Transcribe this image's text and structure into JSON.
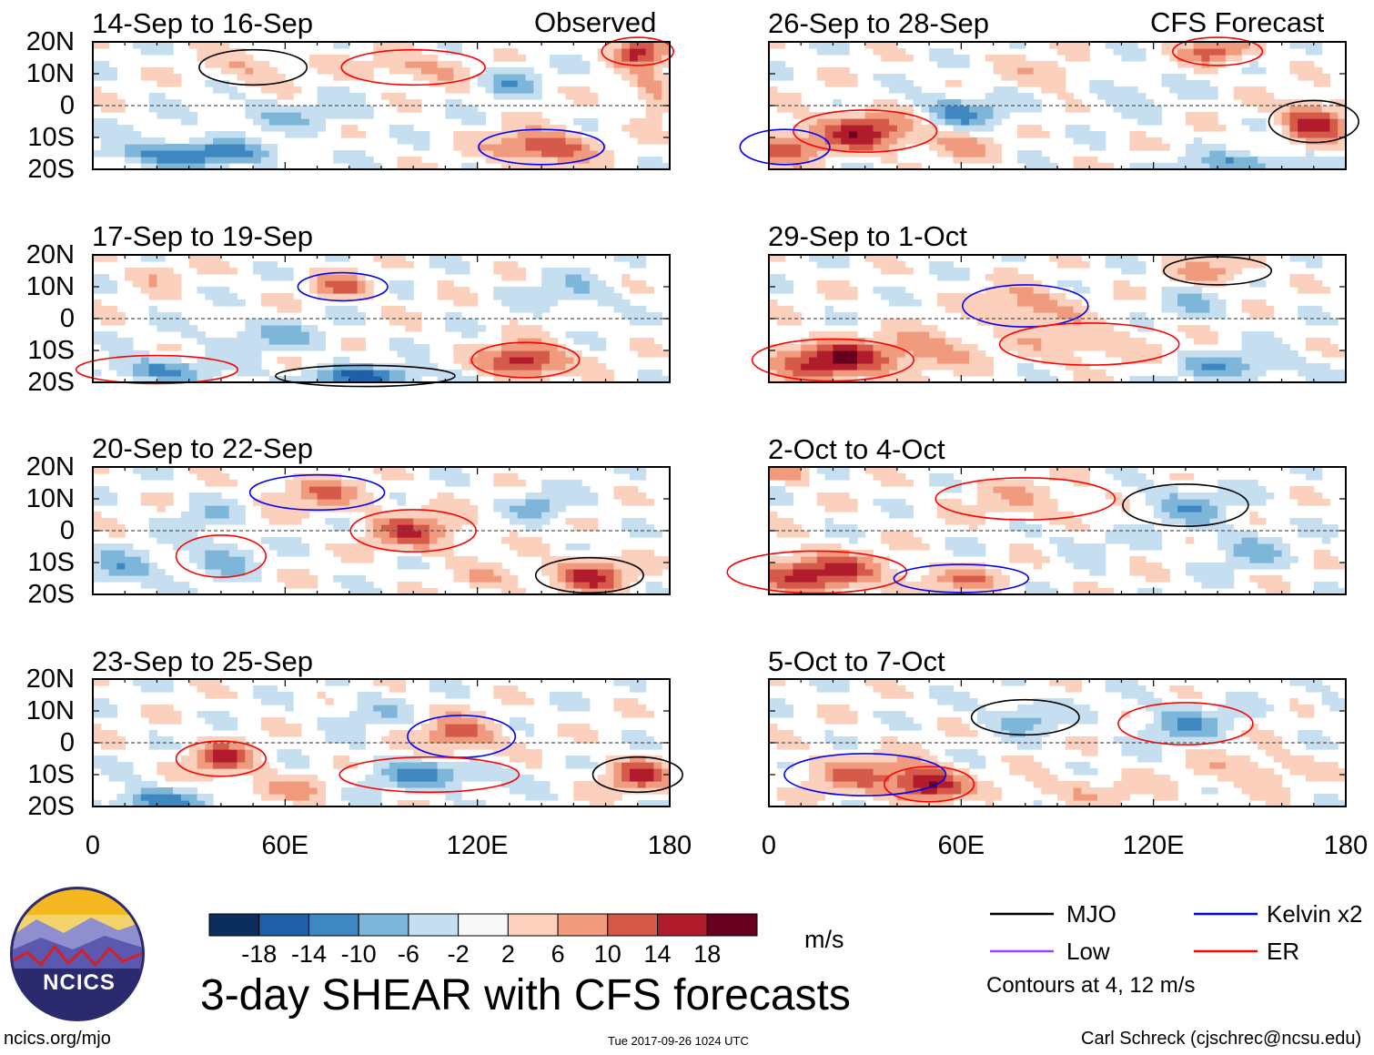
{
  "figure": {
    "main_title": "3-day SHEAR with CFS forecasts",
    "units": "m/s",
    "contour_note": "Contours at 4, 12 m/s",
    "footer_left": "ncics.org/mjo",
    "footer_center": "Tue 2017-09-26 1024 UTC",
    "footer_right": "Carl Schreck (cjschrec@ncsu.edu)",
    "logo_text": "NCICS",
    "column_titles": [
      "Observed",
      "CFS Forecast"
    ]
  },
  "legend": [
    {
      "label": "MJO",
      "color": "#000000"
    },
    {
      "label": "Kelvin x2",
      "color": "#0000ff"
    },
    {
      "label": "Low",
      "color": "#a040ff"
    },
    {
      "label": "ER",
      "color": "#ff0000"
    }
  ],
  "colorbar": {
    "labels": [
      "-18",
      "-14",
      "-10",
      "-6",
      "-2",
      "2",
      "6",
      "10",
      "14",
      "18"
    ],
    "colors": [
      "#0a2d5c",
      "#1f5fa8",
      "#3e87c0",
      "#7eb6d9",
      "#c6dff0",
      "#f8f8f8",
      "#fbd0bc",
      "#f09a7e",
      "#d55a4a",
      "#b01c2c",
      "#67001f"
    ]
  },
  "chart_data": {
    "type": "heatmap",
    "variable": "3-day vertical wind shear anomaly",
    "units": "m/s",
    "x_ticks": [
      "0",
      "60E",
      "120E",
      "180"
    ],
    "y_ticks": [
      "20N",
      "10N",
      "0",
      "10S",
      "20S"
    ],
    "xlim": [
      0,
      180
    ],
    "ylim": [
      -20,
      20
    ],
    "contour_levels": [
      4,
      12
    ],
    "panels": [
      {
        "title": "14-Sep to 16-Sep",
        "column": "Observed",
        "blobs": [
          [
            170,
            17,
            8,
            4,
            18
          ],
          [
            140,
            -13,
            14,
            5,
            16
          ],
          [
            50,
            12,
            12,
            5,
            6
          ],
          [
            100,
            12,
            16,
            5,
            7
          ],
          [
            30,
            -15,
            25,
            4,
            -14
          ],
          [
            130,
            8,
            10,
            5,
            -8
          ],
          [
            175,
            3,
            6,
            8,
            8
          ],
          [
            60,
            -3,
            25,
            5,
            -5
          ]
        ]
      },
      {
        "title": "17-Sep to 19-Sep",
        "column": "Observed",
        "blobs": [
          [
            135,
            -13,
            12,
            5,
            18
          ],
          [
            78,
            10,
            10,
            4,
            10
          ],
          [
            85,
            -18,
            20,
            3,
            -14
          ],
          [
            20,
            -16,
            18,
            4,
            -10
          ],
          [
            55,
            -5,
            20,
            5,
            -6
          ],
          [
            150,
            8,
            15,
            6,
            -5
          ],
          [
            20,
            14,
            10,
            4,
            5
          ]
        ]
      },
      {
        "title": "20-Sep to 22-Sep",
        "column": "Observed",
        "blobs": [
          [
            100,
            0,
            14,
            6,
            12
          ],
          [
            70,
            12,
            15,
            5,
            9
          ],
          [
            155,
            -14,
            12,
            5,
            15
          ],
          [
            40,
            -8,
            10,
            6,
            -8
          ],
          [
            10,
            -12,
            12,
            6,
            -8
          ],
          [
            140,
            8,
            10,
            5,
            -7
          ],
          [
            35,
            5,
            10,
            5,
            -5
          ],
          [
            125,
            -15,
            10,
            4,
            6
          ]
        ]
      },
      {
        "title": "23-Sep to 25-Sep",
        "column": "Observed",
        "blobs": [
          [
            40,
            -5,
            10,
            5,
            14
          ],
          [
            115,
            2,
            12,
            6,
            12
          ],
          [
            170,
            -10,
            10,
            5,
            14
          ],
          [
            105,
            -10,
            20,
            5,
            -10
          ],
          [
            20,
            -18,
            15,
            4,
            -12
          ],
          [
            85,
            10,
            12,
            5,
            -5
          ],
          [
            60,
            -14,
            15,
            4,
            7
          ]
        ]
      },
      {
        "title": "26-Sep to 28-Sep",
        "column": "CFS Forecast",
        "blobs": [
          [
            30,
            -8,
            16,
            6,
            16
          ],
          [
            5,
            -13,
            10,
            5,
            12
          ],
          [
            170,
            -5,
            10,
            6,
            16
          ],
          [
            140,
            17,
            10,
            4,
            12
          ],
          [
            60,
            -10,
            12,
            6,
            8
          ],
          [
            60,
            -3,
            14,
            6,
            -12
          ],
          [
            150,
            -18,
            20,
            3,
            -10
          ],
          [
            110,
            5,
            14,
            6,
            -5
          ],
          [
            90,
            10,
            14,
            5,
            6
          ]
        ]
      },
      {
        "title": "29-Sep to 1-Oct",
        "column": "CFS Forecast",
        "blobs": [
          [
            20,
            -13,
            18,
            6,
            18
          ],
          [
            80,
            4,
            14,
            6,
            9
          ],
          [
            140,
            15,
            12,
            4,
            8
          ],
          [
            100,
            -8,
            20,
            6,
            6
          ],
          [
            145,
            -15,
            20,
            5,
            -8
          ],
          [
            130,
            5,
            12,
            5,
            -5
          ],
          [
            50,
            -10,
            15,
            6,
            8
          ]
        ]
      },
      {
        "title": "2-Oct to 4-Oct",
        "column": "CFS Forecast",
        "blobs": [
          [
            15,
            -13,
            20,
            6,
            16
          ],
          [
            60,
            -15,
            15,
            4,
            8
          ],
          [
            130,
            8,
            14,
            6,
            -8
          ],
          [
            80,
            10,
            20,
            6,
            5
          ],
          [
            150,
            -6,
            14,
            6,
            -6
          ],
          [
            100,
            -3,
            12,
            4,
            -4
          ],
          [
            5,
            18,
            8,
            3,
            8
          ]
        ]
      },
      {
        "title": "5-Oct to 7-Oct",
        "column": "CFS Forecast",
        "blobs": [
          [
            50,
            -13,
            10,
            5,
            18
          ],
          [
            30,
            -10,
            18,
            6,
            10
          ],
          [
            80,
            8,
            12,
            5,
            -8
          ],
          [
            130,
            6,
            15,
            6,
            -8
          ],
          [
            150,
            -8,
            16,
            6,
            6
          ],
          [
            100,
            -15,
            25,
            4,
            5
          ],
          [
            175,
            12,
            8,
            4,
            -3
          ]
        ]
      }
    ]
  }
}
